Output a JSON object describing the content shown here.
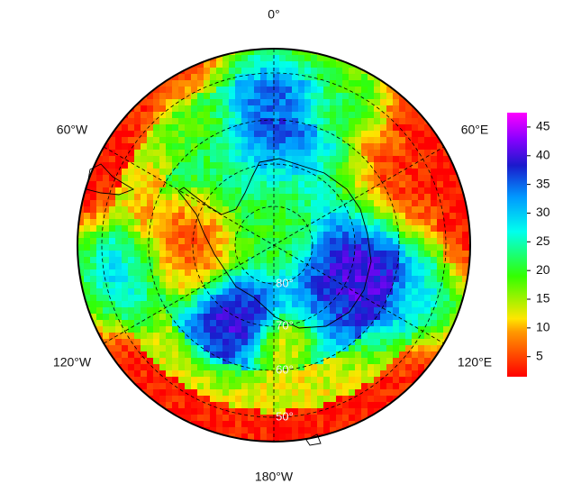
{
  "map": {
    "longitude_labels": [
      "0°",
      "60°W",
      "60°E",
      "120°W",
      "120°E",
      "180°W"
    ],
    "latitude_labels": [
      "80°",
      "70°",
      "60°",
      "50°"
    ],
    "colorbar": {
      "lim": [
        1.5,
        47.5
      ],
      "ticks": [
        5,
        10,
        15,
        20,
        25,
        30,
        35,
        40,
        45
      ]
    }
  }
}
